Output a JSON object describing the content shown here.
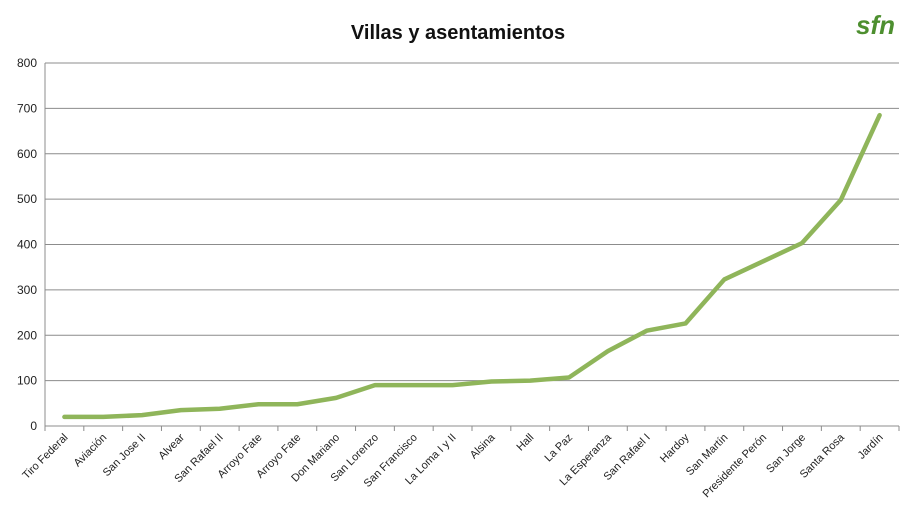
{
  "chart_data": {
    "type": "line",
    "title": "Villas y asentamientos",
    "xlabel": "",
    "ylabel": "",
    "ylim": [
      0,
      800
    ],
    "yticks": [
      0,
      100,
      200,
      300,
      400,
      500,
      600,
      700,
      800
    ],
    "grid": true,
    "legend": "none",
    "categories": [
      "Tiro Federal",
      "Aviación",
      "San Jose II",
      "Alvear",
      "San Rafael II",
      "Arroyo Fate",
      "Arroyo Fate",
      "Don Mariano",
      "San Lorenzo",
      "San Francisco",
      "La Loma I y II",
      "Alsina",
      "Hall",
      "La Paz",
      "La Esperanza",
      "San Rafael I",
      "Hardoy",
      "San Martín",
      "Presidente Perón",
      "San Jorge",
      "Santa Rosa",
      "Jardín"
    ],
    "series": [
      {
        "values": [
          20,
          20,
          24,
          35,
          38,
          48,
          48,
          62,
          90,
          90,
          90,
          98,
          100,
          107,
          165,
          210,
          226,
          323,
          363,
          403,
          498,
          685
        ]
      }
    ],
    "colors": {
      "line": "#8fb55a",
      "grid": "#8c8c8c",
      "axis": "#8c8c8c"
    }
  },
  "logo": {
    "text": "sfn",
    "colors": [
      "#3a7a2a",
      "#6fae3a"
    ]
  }
}
